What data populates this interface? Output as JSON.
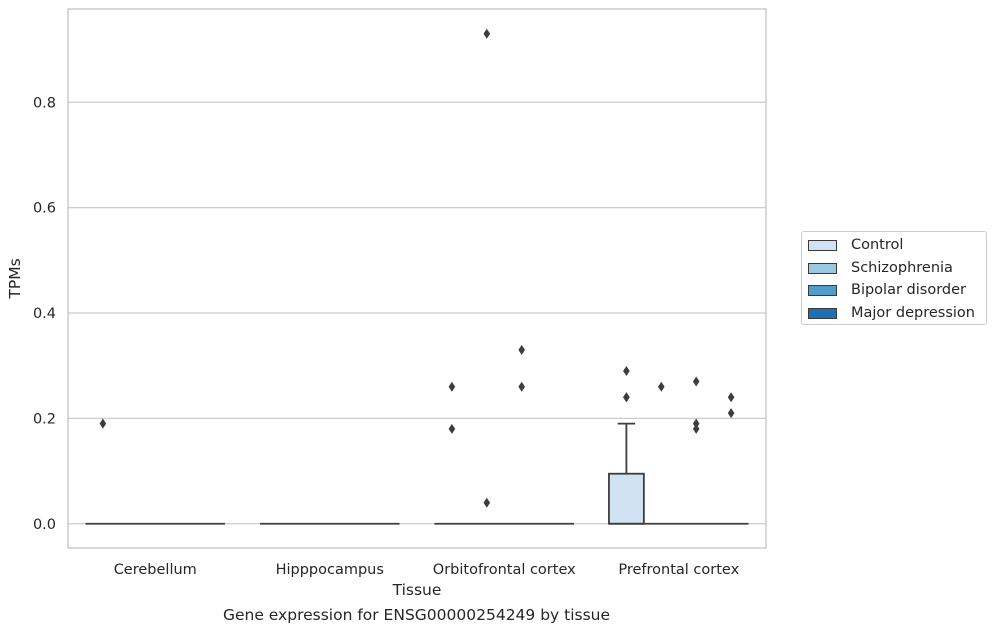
{
  "chart_data": {
    "type": "box",
    "categories": [
      "Cerebellum",
      "Hipppocampus",
      "Orbitofrontal cortex",
      "Prefrontal cortex"
    ],
    "xlabel": "Tissue",
    "ylabel": "TPMs",
    "caption": "Gene expression for ENSG00000254249 by tissue",
    "ylim": [
      -0.046,
      0.977
    ],
    "yticks": [
      0.0,
      0.2,
      0.4,
      0.6,
      0.8
    ],
    "ytick_labels": [
      "0.0",
      "0.2",
      "0.4",
      "0.6",
      "0.8"
    ],
    "grid": "horizontal",
    "legend_position": "right",
    "series": [
      {
        "name": "Control",
        "color": "#d1e2f2"
      },
      {
        "name": "Schizophrenia",
        "color": "#9ac8e0"
      },
      {
        "name": "Bipolar disorder",
        "color": "#529dcc"
      },
      {
        "name": "Major depression",
        "color": "#1f6fb3"
      }
    ],
    "boxes": [
      {
        "category": "Cerebellum",
        "q1": 0,
        "median": 0,
        "q3": 0,
        "whisker_low": 0,
        "whisker_high": 0,
        "outliers": [
          0.19
        ]
      },
      {
        "category": "Hipppocampus",
        "q1": 0,
        "median": 0,
        "q3": 0,
        "whisker_low": 0,
        "whisker_high": 0,
        "outliers": []
      },
      {
        "category": "Orbitofrontal cortex",
        "q1": 0,
        "median": 0,
        "q3": 0,
        "whisker_low": 0,
        "whisker_high": 0,
        "outliers": [
          0.26,
          0.18,
          0.04,
          0.93,
          0.33,
          0.26
        ]
      },
      {
        "category": "Prefrontal cortex",
        "series": "Control",
        "q1": 0,
        "median": 0,
        "q3": 0.095,
        "whisker_low": 0,
        "whisker_high": 0.19,
        "outliers": [
          0.29,
          0.24,
          0.24,
          0.26,
          0.27,
          0.19,
          0.18,
          0.24,
          0.21
        ]
      }
    ]
  }
}
